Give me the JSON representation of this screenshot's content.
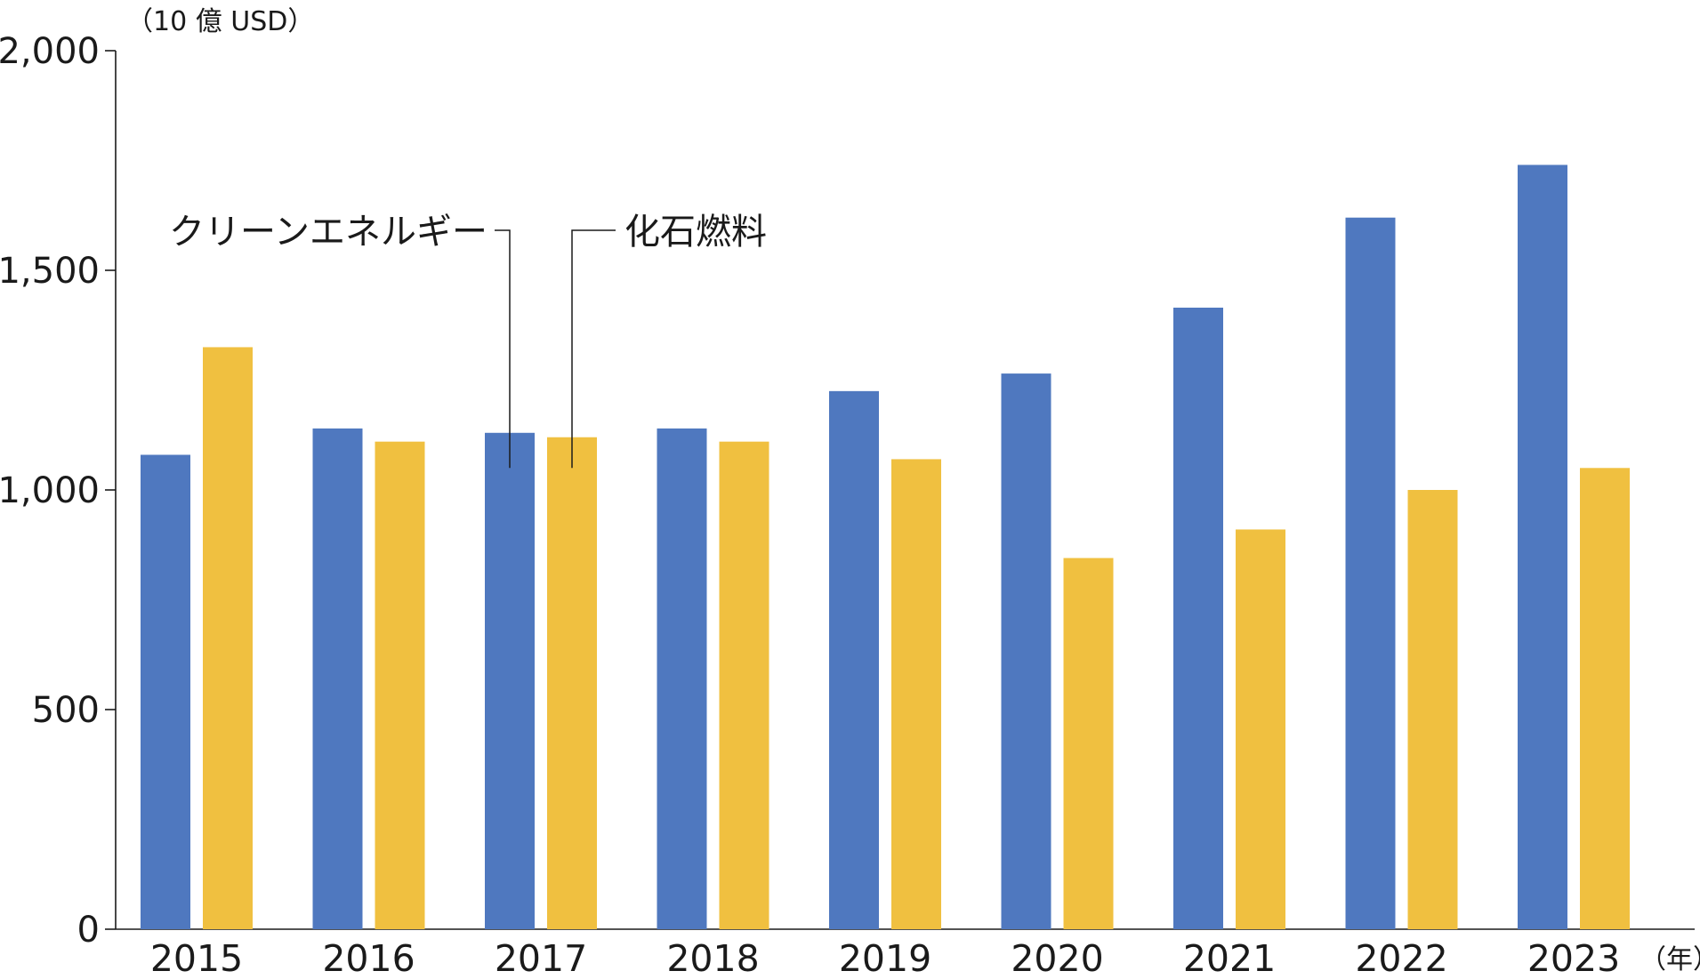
{
  "chart_data": {
    "type": "bar",
    "title": "",
    "ylabel": "（10 億 USD）",
    "xlabel": "（年）",
    "categories": [
      "2015",
      "2016",
      "2017",
      "2018",
      "2019",
      "2020",
      "2021",
      "2022",
      "2023"
    ],
    "series": [
      {
        "name": "クリーンエネルギー",
        "color": "#4f78bf",
        "values": [
          1080,
          1140,
          1130,
          1140,
          1225,
          1265,
          1415,
          1620,
          1740
        ]
      },
      {
        "name": "化石燃料",
        "color": "#f0c040",
        "values": [
          1325,
          1110,
          1120,
          1110,
          1070,
          845,
          910,
          1000,
          1050
        ]
      }
    ],
    "ylim": [
      0,
      2000
    ],
    "yticks": [
      0,
      500,
      1000,
      1500,
      2000
    ],
    "ytick_labels": [
      "0",
      "500",
      "1,000",
      "1,500",
      "2,000"
    ],
    "grid": false,
    "legend": "callouts at 2017 bars, top-left"
  }
}
